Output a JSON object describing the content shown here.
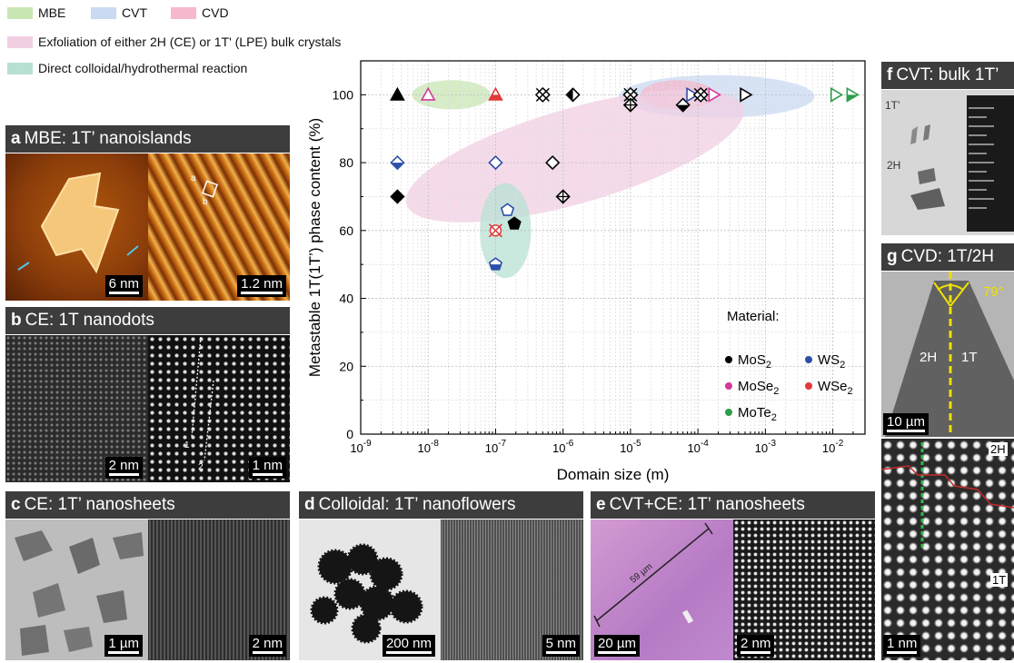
{
  "legend": {
    "mbe": {
      "label": "MBE",
      "color": "#c8e6b3"
    },
    "cvt": {
      "label": "CVT",
      "color": "#c9daf2"
    },
    "cvd": {
      "label": "CVD",
      "color": "#f6b8cc"
    },
    "exfoliation": {
      "label": "Exfoliation of either 2H (CE) or 1T' (LPE) bulk crystals",
      "color": "#f1cfe3"
    },
    "colloidal": {
      "label": "Direct colloidal/hydrothermal reaction",
      "color": "#b7e0d3"
    }
  },
  "panels": {
    "a": {
      "letter": "a",
      "title": "MBE: 1T’ nanoislands",
      "scale_left": "6 nm",
      "scale_right": "1.2 nm",
      "mark_a": "a",
      "mark_b": "b"
    },
    "b": {
      "letter": "b",
      "title": "CE: 1T nanodots",
      "scale_left": "2 nm",
      "scale_right": "1 nm",
      "mark_1": "1",
      "mark_2": "2"
    },
    "c": {
      "letter": "c",
      "title": "CE: 1T’ nanosheets",
      "scale_left": "1 µm",
      "scale_right": "2 nm"
    },
    "d": {
      "letter": "d",
      "title": "Colloidal: 1T’ nanoflowers",
      "scale_left": "200 nm",
      "scale_right": "5 nm"
    },
    "e": {
      "letter": "e",
      "title": "CVT+CE: 1T’ nanosheets",
      "scale_left": "20 µm",
      "scale_right": "2 nm",
      "measure": "59 µm"
    },
    "f": {
      "letter": "f",
      "title": "CVT: bulk 1T’",
      "label_1t": "1T’",
      "label_2h": "2H"
    },
    "g": {
      "letter": "g",
      "title": "CVD: 1T/2H",
      "angle": "79°",
      "label_2h": "2H",
      "label_1t": "1T",
      "scale_top": "10 µm",
      "scale_bottom": "1 nm",
      "label_2h_b": "2H",
      "label_1t_b": "1T"
    }
  },
  "chart_data": {
    "type": "scatter",
    "xlabel": "Domain size (m)",
    "ylabel": "Metastable 1T(1T’) phase content (%)",
    "xscale": "log",
    "xlim": [
      1e-09,
      0.03
    ],
    "ylim": [
      0,
      110
    ],
    "grid": true,
    "x_ticks": [
      {
        "value": 1e-09,
        "base": "10",
        "exp": "-9"
      },
      {
        "value": 1e-08,
        "base": "10",
        "exp": "-8"
      },
      {
        "value": 1e-07,
        "base": "10",
        "exp": "-7"
      },
      {
        "value": 1e-06,
        "base": "10",
        "exp": "-6"
      },
      {
        "value": 1e-05,
        "base": "10",
        "exp": "-5"
      },
      {
        "value": 0.0001,
        "base": "10",
        "exp": "-4"
      },
      {
        "value": 0.001,
        "base": "10",
        "exp": "-3"
      },
      {
        "value": 0.01,
        "base": "10",
        "exp": "-2"
      }
    ],
    "y_ticks": [
      0,
      20,
      40,
      60,
      80,
      100
    ],
    "regions": [
      {
        "method": "MBE",
        "cx": 2.2e-08,
        "cy": 100,
        "rx_dec": 0.58,
        "ry": 4.3,
        "angle": 0,
        "color": "#c8e6b3"
      },
      {
        "method": "CVT",
        "cx": 0.00019,
        "cy": 99.5,
        "rx_dec": 1.45,
        "ry": 6.3,
        "angle": 0,
        "color": "#c9daf2"
      },
      {
        "method": "CVD",
        "cx": 5e-05,
        "cy": 100,
        "rx_dec": 0.55,
        "ry": 4.3,
        "angle": 0,
        "color": "#f6b8cc"
      },
      {
        "method": "Exfoliation",
        "cx": 1.5e-06,
        "cy": 82,
        "rx_dec": 2.6,
        "ry": 14,
        "angle": -16,
        "color": "#f1cfe3"
      },
      {
        "method": "Colloidal",
        "cx": 1.4e-07,
        "cy": 60,
        "rx_dec": 0.38,
        "ry": 14,
        "angle": 0,
        "color": "#b7e0d3"
      }
    ],
    "materials_legend": {
      "title": "Material:",
      "items": [
        {
          "name": "MoS2",
          "base": "MoS",
          "sub": "2",
          "color": "#000000"
        },
        {
          "name": "WS2",
          "base": "WS",
          "sub": "2",
          "color": "#2e4fa8"
        },
        {
          "name": "MoSe2",
          "base": "MoSe",
          "sub": "2",
          "color": "#d2399b"
        },
        {
          "name": "WSe2",
          "base": "WSe",
          "sub": "2",
          "color": "#e03a3a"
        },
        {
          "name": "MoTe2",
          "base": "MoTe",
          "sub": "2",
          "color": "#2e9e4b"
        }
      ]
    },
    "points": [
      {
        "x": 3.5e-09,
        "y": 100,
        "material": "MoS2",
        "marker": "triangle",
        "fill": "full"
      },
      {
        "x": 1e-08,
        "y": 100,
        "material": "MoSe2",
        "marker": "triangle",
        "fill": "open"
      },
      {
        "x": 1e-07,
        "y": 100,
        "material": "WSe2",
        "marker": "triangle",
        "fill": "half"
      },
      {
        "x": 5e-07,
        "y": 100,
        "material": "MoS2",
        "marker": "x-square",
        "fill": "open"
      },
      {
        "x": 1.4e-06,
        "y": 100,
        "material": "MoS2",
        "marker": "diamond",
        "fill": "half-left"
      },
      {
        "x": 1e-05,
        "y": 100,
        "material": "MoTe2",
        "marker": "star",
        "fill": "full"
      },
      {
        "x": 1e-05,
        "y": 100,
        "material": "MoS2",
        "marker": "x-square",
        "fill": "open"
      },
      {
        "x": 1e-05,
        "y": 97,
        "material": "MoS2",
        "marker": "cross-diamond",
        "fill": "open"
      },
      {
        "x": 6e-05,
        "y": 97,
        "material": "MoS2",
        "marker": "diamond",
        "fill": "half-bottom"
      },
      {
        "x": 8e-05,
        "y": 100,
        "material": "WS2",
        "marker": "triangle-right",
        "fill": "open"
      },
      {
        "x": 0.00011,
        "y": 100,
        "material": "MoS2",
        "marker": "x-square",
        "fill": "open"
      },
      {
        "x": 0.00017,
        "y": 100,
        "material": "MoSe2",
        "marker": "triangle-right",
        "fill": "open"
      },
      {
        "x": 0.0005,
        "y": 100,
        "material": "MoS2",
        "marker": "triangle-right",
        "fill": "open"
      },
      {
        "x": 0.011,
        "y": 100,
        "material": "MoTe2",
        "marker": "triangle-right",
        "fill": "open"
      },
      {
        "x": 0.019,
        "y": 100,
        "material": "MoTe2",
        "marker": "triangle-right",
        "fill": "half"
      },
      {
        "x": 3.5e-09,
        "y": 80,
        "material": "WS2",
        "marker": "diamond",
        "fill": "half-bottom"
      },
      {
        "x": 1e-07,
        "y": 80,
        "material": "WS2",
        "marker": "diamond",
        "fill": "open"
      },
      {
        "x": 7e-07,
        "y": 80,
        "material": "MoS2",
        "marker": "diamond",
        "fill": "open"
      },
      {
        "x": 3.5e-09,
        "y": 70,
        "material": "MoS2",
        "marker": "diamond",
        "fill": "full"
      },
      {
        "x": 1e-06,
        "y": 70,
        "material": "MoS2",
        "marker": "cross-diamond",
        "fill": "open"
      },
      {
        "x": 1.5e-07,
        "y": 66,
        "material": "WS2",
        "marker": "pentagon",
        "fill": "open"
      },
      {
        "x": 1.9e-07,
        "y": 62,
        "material": "MoS2",
        "marker": "pentagon",
        "fill": "full"
      },
      {
        "x": 1e-07,
        "y": 60,
        "material": "WSe2",
        "marker": "x-circle",
        "fill": "open"
      },
      {
        "x": 1e-07,
        "y": 50,
        "material": "WS2",
        "marker": "pentagon",
        "fill": "half"
      }
    ]
  }
}
